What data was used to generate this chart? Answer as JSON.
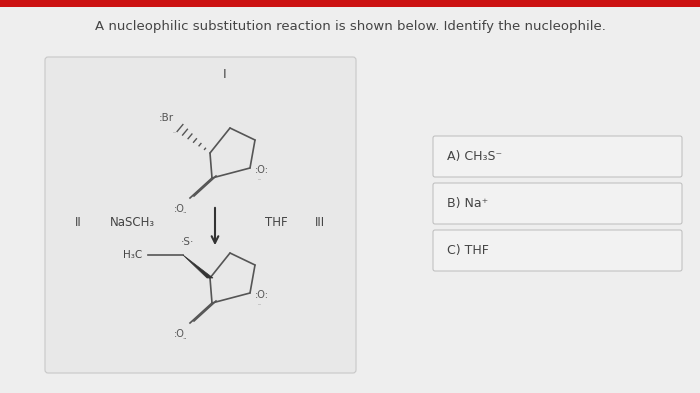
{
  "title": "A nucleophilic substitution reaction is shown below. Identify the nucleophile.",
  "title_fontsize": 9.5,
  "title_color": "#444444",
  "bg_color": "#dcdcdc",
  "main_bg": "#e8e8e8",
  "box_bg": "#e4e4e4",
  "box_outline": "#c0c0c0",
  "red_bar_color": "#cc1111",
  "answer_bg": "#f0f0f0",
  "answer_border": "#c0c0c0",
  "answer_texts": [
    "A) CH₃S⁻",
    "B) Na⁺",
    "C) THF"
  ],
  "label_I": "I",
  "label_II": "II",
  "label_III": "III",
  "reagent_text": "NaSCH₃",
  "solvent_text": "THF",
  "line_color": "#555555"
}
